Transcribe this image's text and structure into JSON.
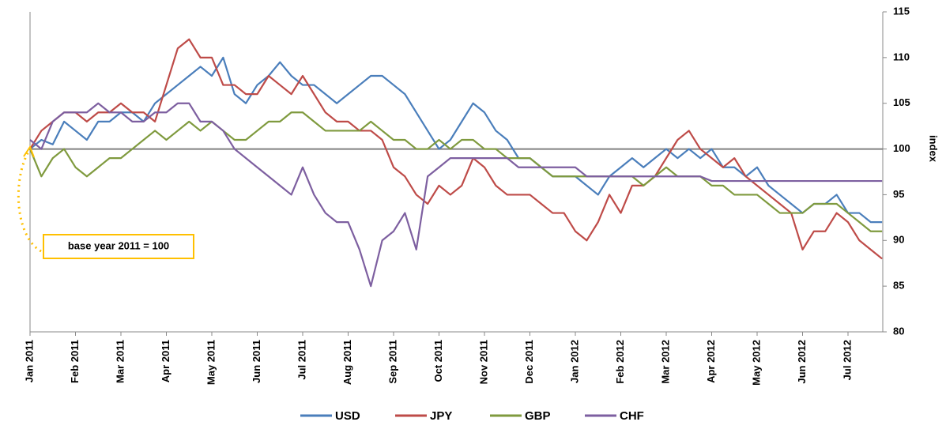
{
  "chart_data": {
    "type": "line",
    "categories": [
      "Jan 2011",
      null,
      null,
      null,
      "Feb 2011",
      null,
      null,
      null,
      "Mar 2011",
      null,
      null,
      null,
      "Apr 2011",
      null,
      null,
      null,
      "May 2011",
      null,
      null,
      null,
      "Jun 2011",
      null,
      null,
      null,
      "Jul 2011",
      null,
      null,
      null,
      "Aug 2011",
      null,
      null,
      null,
      "Sep 2011",
      null,
      null,
      null,
      "Oct 2011",
      null,
      null,
      null,
      "Nov 2011",
      null,
      null,
      null,
      "Dec 2011",
      null,
      null,
      null,
      "Jan 2012",
      null,
      null,
      null,
      "Feb 2012",
      null,
      null,
      null,
      "Mar 2012",
      null,
      null,
      null,
      "Apr 2012",
      null,
      null,
      null,
      "May 2012",
      null,
      null,
      null,
      "Jun 2012",
      null,
      null,
      null,
      "Jul 2012",
      null,
      null,
      null
    ],
    "series": [
      {
        "name": "USD",
        "color": "#4a7ebb",
        "values": [
          100,
          101,
          100.5,
          103,
          102,
          101,
          103,
          103,
          104,
          104,
          103,
          105,
          106,
          107,
          108,
          109,
          108,
          110,
          106,
          105,
          107,
          108,
          109.5,
          108,
          107,
          107,
          106,
          105,
          106,
          107,
          108,
          108,
          107,
          106,
          104,
          102,
          100,
          101,
          103,
          105,
          104,
          102,
          101,
          99,
          99,
          98,
          97,
          97,
          97,
          96,
          95,
          97,
          98,
          99,
          98,
          99,
          100,
          99,
          100,
          99,
          100,
          98,
          98,
          97,
          98,
          96,
          95,
          94,
          93,
          94,
          94,
          95,
          93,
          93,
          92,
          92
        ]
      },
      {
        "name": "JPY",
        "color": "#be4b48",
        "values": [
          100,
          102,
          103,
          104,
          104,
          103,
          104,
          104,
          105,
          104,
          104,
          103,
          107,
          111,
          112,
          110,
          110,
          107,
          107,
          106,
          106,
          108,
          107,
          106,
          108,
          106,
          104,
          103,
          103,
          102,
          102,
          101,
          98,
          97,
          95,
          94,
          96,
          95,
          96,
          99,
          98,
          96,
          95,
          95,
          95,
          94,
          93,
          93,
          91,
          90,
          92,
          95,
          93,
          96,
          96,
          97,
          99,
          101,
          102,
          100,
          99,
          98,
          99,
          97,
          96,
          95,
          94,
          93,
          89,
          91,
          91,
          93,
          92,
          90,
          89,
          88
        ]
      },
      {
        "name": "GBP",
        "color": "#7f9a3e",
        "values": [
          100,
          97,
          99,
          100,
          98,
          97,
          98,
          99,
          99,
          100,
          101,
          102,
          101,
          102,
          103,
          102,
          103,
          102,
          101,
          101,
          102,
          103,
          103,
          104,
          104,
          103,
          102,
          102,
          102,
          102,
          103,
          102,
          101,
          101,
          100,
          100,
          101,
          100,
          101,
          101,
          100,
          100,
          99,
          99,
          99,
          98,
          97,
          97,
          97,
          97,
          97,
          97,
          97,
          97,
          96,
          97,
          98,
          97,
          97,
          97,
          96,
          96,
          95,
          95,
          95,
          94,
          93,
          93,
          93,
          94,
          94,
          94,
          93,
          92,
          91,
          91
        ]
      },
      {
        "name": "CHF",
        "color": "#7d5fa0",
        "values": [
          101,
          100,
          103,
          104,
          104,
          104,
          105,
          104,
          104,
          103,
          103,
          104,
          104,
          105,
          105,
          103,
          103,
          102,
          100,
          99,
          98,
          97,
          96,
          95,
          98,
          95,
          93,
          92,
          92,
          89,
          85,
          90,
          91,
          93,
          89,
          97,
          98,
          99,
          99,
          99,
          99,
          99,
          99,
          98,
          98,
          98,
          98,
          98,
          98,
          97,
          97,
          97,
          97,
          97,
          97,
          97,
          97,
          97,
          97,
          97,
          96.5,
          96.5,
          96.5,
          96.5,
          96.5,
          96.5,
          96.5,
          96.5,
          96.5,
          96.5,
          96.5,
          96.5,
          96.5,
          96.5,
          96.5,
          96.5
        ]
      }
    ],
    "ylim": [
      80,
      115
    ],
    "yticks": [
      80,
      85,
      90,
      95,
      100,
      105,
      110,
      115
    ],
    "ylabel": "index",
    "reference_line": 100,
    "reference_color": "#808080",
    "annotation": "base year 2011 = 100",
    "legend": "bottom"
  }
}
